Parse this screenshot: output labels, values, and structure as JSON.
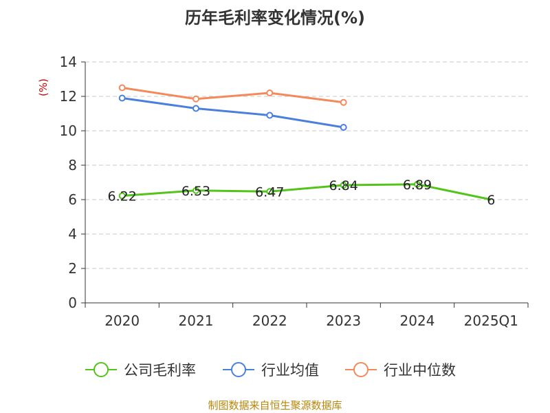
{
  "chart_data": {
    "type": "line",
    "title": "历年毛利率变化情况(%)",
    "ylabel": "(%)",
    "categories": [
      "2020",
      "2021",
      "2022",
      "2023",
      "2024",
      "2025Q1"
    ],
    "ylim": [
      0,
      14
    ],
    "yticks": [
      "0",
      "2",
      "4",
      "6",
      "8",
      "10",
      "12",
      "14"
    ],
    "grid": true,
    "legend_position": "bottom",
    "series": [
      {
        "name": "公司毛利率",
        "color": "#52c41a",
        "values": [
          6.22,
          6.53,
          6.47,
          6.84,
          6.89,
          6
        ],
        "labels": [
          "6.22",
          "6.53",
          "6.47",
          "6.84",
          "6.89",
          "6"
        ]
      },
      {
        "name": "行业均值",
        "color": "#4a7fdc",
        "values": [
          11.9,
          11.3,
          10.9,
          10.2,
          null,
          null
        ]
      },
      {
        "name": "行业中位数",
        "color": "#f4895a",
        "values": [
          12.5,
          11.85,
          12.2,
          11.65,
          null,
          null
        ]
      }
    ]
  },
  "unit_color": "#cc0000",
  "source": {
    "text": "制图数据来自恒生聚源数据库",
    "color": "#b8860b"
  }
}
